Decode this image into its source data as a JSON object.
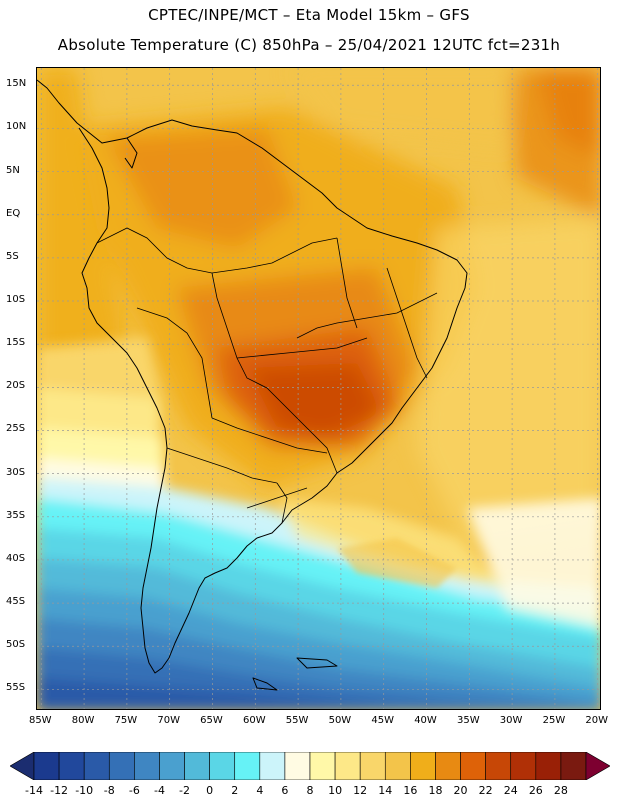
{
  "title": {
    "line1": "CPTEC/INPE/MCT –  Eta Model 15km – GFS",
    "line2": "Absolute Temperature (C) 850hPa – 25/04/2021 12UTC fct=231h"
  },
  "axes": {
    "lat_labels": [
      "15N",
      "10N",
      "5N",
      "EQ",
      "5S",
      "10S",
      "15S",
      "20S",
      "25S",
      "30S",
      "35S",
      "40S",
      "45S",
      "50S",
      "55S"
    ],
    "lat_values": [
      15,
      10,
      5,
      0,
      -5,
      -10,
      -15,
      -20,
      -25,
      -30,
      -35,
      -40,
      -45,
      -50,
      -55
    ],
    "lon_labels": [
      "85W",
      "80W",
      "75W",
      "70W",
      "65W",
      "60W",
      "55W",
      "50W",
      "45W",
      "40W",
      "35W",
      "30W",
      "25W",
      "20W"
    ],
    "lon_values": [
      -85,
      -80,
      -75,
      -70,
      -65,
      -60,
      -55,
      -50,
      -45,
      -40,
      -35,
      -30,
      -25,
      -20
    ],
    "lat_range": [
      -57.5,
      17.0
    ],
    "lon_range": [
      -85.5,
      -19.5
    ]
  },
  "colorbar": {
    "labels": [
      "-14",
      "-12",
      "-10",
      "-8",
      "-6",
      "-4",
      "-2",
      "0",
      "2",
      "4",
      "6",
      "8",
      "10",
      "12",
      "14",
      "16",
      "18",
      "20",
      "22",
      "24",
      "26",
      "28"
    ],
    "values": [
      -14,
      -12,
      -10,
      -8,
      -6,
      -4,
      -2,
      0,
      2,
      4,
      6,
      8,
      10,
      12,
      14,
      16,
      18,
      20,
      22,
      24,
      26,
      28
    ],
    "colors": [
      "#1b3a8e",
      "#21489c",
      "#2a5aa8",
      "#3470b6",
      "#3f86c2",
      "#4aa0cf",
      "#52bad9",
      "#5ad6e6",
      "#66f2f6",
      "#ccf4fa",
      "#fffbe3",
      "#fff8a8",
      "#fde888",
      "#f9d66a",
      "#f3c44a",
      "#f0ae1a",
      "#e88a12",
      "#de6208",
      "#c74706",
      "#b03006",
      "#992006",
      "#7a1a10"
    ],
    "under_color": "#1b2d70",
    "over_color": "#7d0030"
  }
}
